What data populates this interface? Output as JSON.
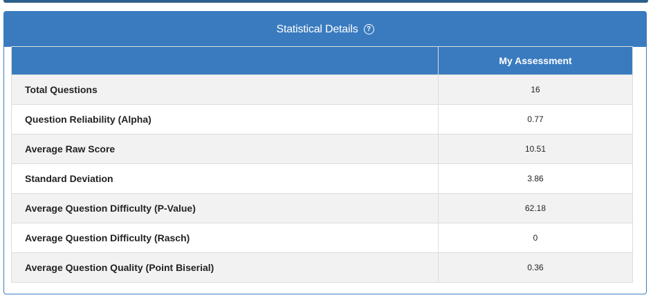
{
  "panel": {
    "title": "Statistical Details",
    "help_icon": "question-circle-icon"
  },
  "table": {
    "header_label": "",
    "header_value": "My Assessment",
    "rows": [
      {
        "label": "Total Questions",
        "value": "16"
      },
      {
        "label": "Question Reliability (Alpha)",
        "value": "0.77"
      },
      {
        "label": "Average Raw Score",
        "value": "10.51"
      },
      {
        "label": "Standard Deviation",
        "value": "3.86"
      },
      {
        "label": "Average Question Difficulty (P-Value)",
        "value": "62.18"
      },
      {
        "label": "Average Question Difficulty (Rasch)",
        "value": "0"
      },
      {
        "label": "Average Question Quality (Point Biserial)",
        "value": "0.36"
      }
    ]
  },
  "colors": {
    "header_blue": "#3a7bbf",
    "top_strip": "#2c5f8a",
    "row_alt": "#f2f2f2"
  }
}
